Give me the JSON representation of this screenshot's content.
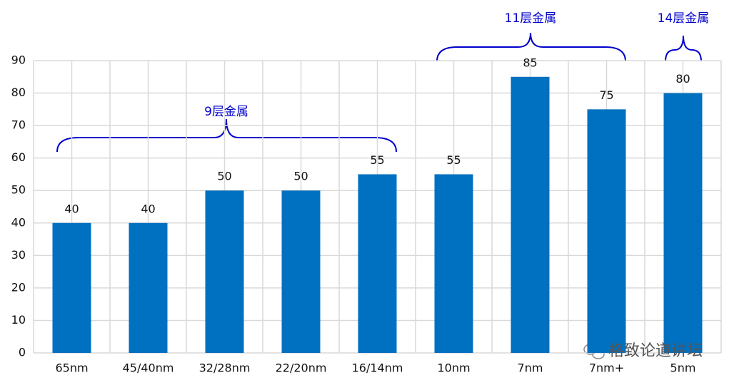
{
  "chart_data": {
    "type": "bar",
    "categories": [
      "65nm",
      "45/40nm",
      "32/28nm",
      "22/20nm",
      "16/14nm",
      "10nm",
      "7nm",
      "7nm+",
      "5nm"
    ],
    "values": [
      40,
      40,
      50,
      50,
      55,
      55,
      85,
      75,
      80
    ],
    "color": "#0070c0",
    "ylim": [
      0,
      90
    ],
    "yticks": [
      0,
      10,
      20,
      30,
      40,
      50,
      60,
      70,
      80,
      90
    ],
    "grid": true,
    "annotations": [
      "9层金属",
      "11层金属",
      "14层金属"
    ],
    "watermark": "格致论道讲坛"
  }
}
